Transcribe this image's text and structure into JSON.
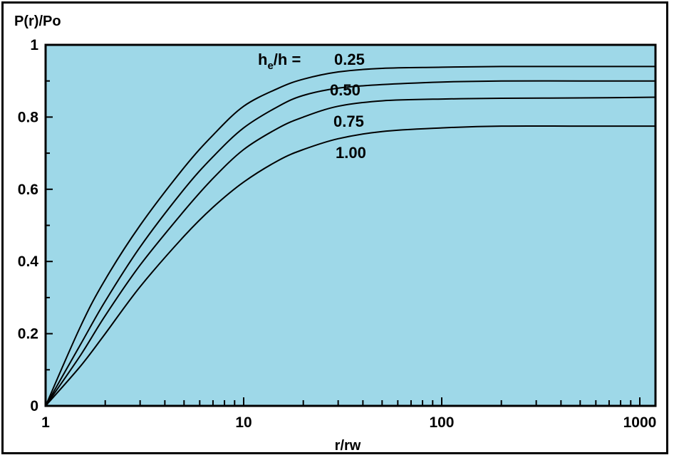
{
  "chart_data": {
    "type": "line",
    "ylabel": "P(r)/Po",
    "xlabel": "r/rw",
    "x_scale": "log",
    "xlim": [
      1,
      1200
    ],
    "ylim": [
      0,
      1
    ],
    "x_ticks": [
      "1",
      "10",
      "100",
      "1000"
    ],
    "y_ticks": [
      "0",
      "0.2",
      "0.4",
      "0.6",
      "0.8",
      "1"
    ],
    "legend_prefix_main": "h",
    "legend_prefix_sub": "e",
    "legend_prefix_rest": "/h = ",
    "background": "#9ed8e8",
    "line_color": "#000000",
    "grid": false,
    "series": [
      {
        "name": "0.25",
        "x": [
          1,
          1.5,
          2,
          3,
          5,
          7,
          10,
          15,
          20,
          30,
          50,
          100,
          200,
          500,
          1200
        ],
        "y": [
          0.0,
          0.22,
          0.35,
          0.5,
          0.66,
          0.75,
          0.83,
          0.88,
          0.905,
          0.925,
          0.935,
          0.938,
          0.94,
          0.94,
          0.94
        ]
      },
      {
        "name": "0.50",
        "x": [
          1,
          1.5,
          2,
          3,
          5,
          7,
          10,
          15,
          20,
          30,
          50,
          100,
          200,
          500,
          1200
        ],
        "y": [
          0.0,
          0.17,
          0.29,
          0.44,
          0.6,
          0.69,
          0.77,
          0.83,
          0.86,
          0.88,
          0.89,
          0.897,
          0.9,
          0.9,
          0.9
        ]
      },
      {
        "name": "0.75",
        "x": [
          1,
          1.5,
          2,
          3,
          5,
          7,
          10,
          15,
          20,
          30,
          50,
          100,
          200,
          500,
          1200
        ],
        "y": [
          0.0,
          0.14,
          0.25,
          0.39,
          0.54,
          0.63,
          0.71,
          0.77,
          0.8,
          0.83,
          0.845,
          0.85,
          0.852,
          0.853,
          0.855
        ]
      },
      {
        "name": "1.00",
        "x": [
          1,
          1.5,
          2,
          3,
          5,
          7,
          10,
          15,
          20,
          30,
          50,
          100,
          200,
          500,
          1200
        ],
        "y": [
          0.0,
          0.11,
          0.2,
          0.33,
          0.47,
          0.55,
          0.62,
          0.68,
          0.71,
          0.74,
          0.76,
          0.77,
          0.775,
          0.775,
          0.775
        ]
      }
    ]
  }
}
